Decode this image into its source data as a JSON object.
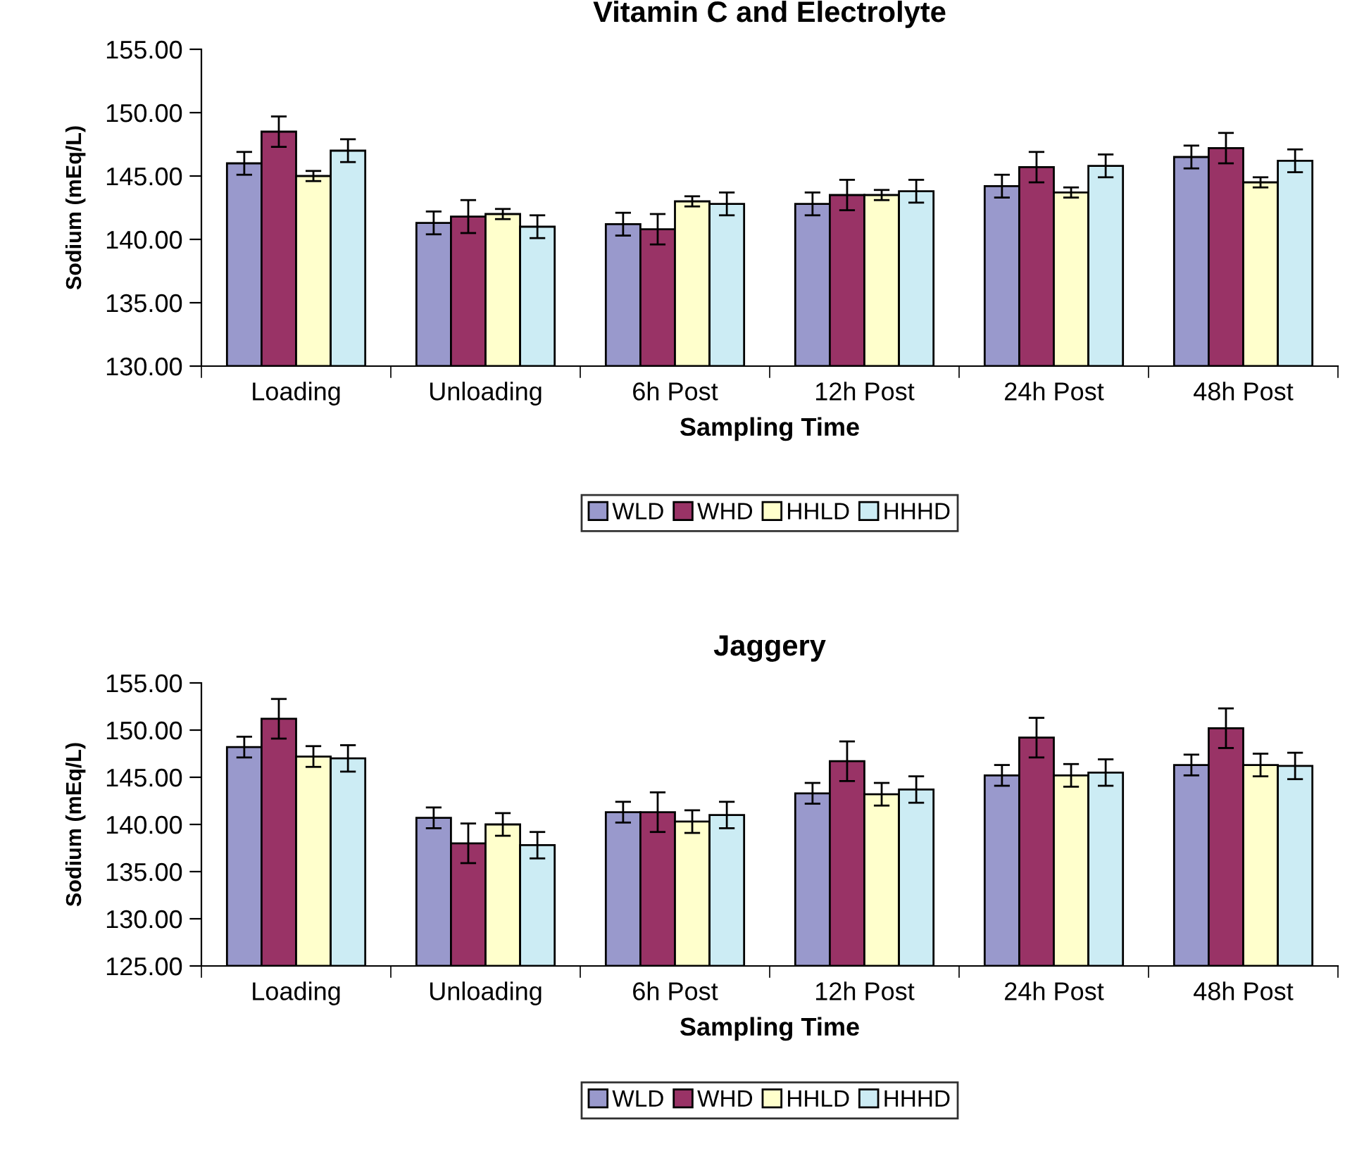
{
  "chart_data": [
    {
      "type": "bar",
      "title": "Vitamin C and Electrolyte",
      "xlabel": "Sampling Time",
      "ylabel": "Sodium (mEq/L)",
      "categories": [
        "Loading",
        "Unloading",
        "6h Post",
        "12h Post",
        "24h Post",
        "48h Post"
      ],
      "ylim": [
        130,
        155
      ],
      "yticks": [
        {
          "value": 130,
          "label": "130.00"
        },
        {
          "value": 135,
          "label": "135.00"
        },
        {
          "value": 140,
          "label": "140.00"
        },
        {
          "value": 145,
          "label": "145.00"
        },
        {
          "value": 150,
          "label": "150.00"
        },
        {
          "value": 155,
          "label": "155.00"
        }
      ],
      "grid": false,
      "legend": "bottom",
      "series": [
        {
          "name": "WLD",
          "color": "#9999cc",
          "values": [
            146.0,
            141.3,
            141.2,
            142.8,
            144.2,
            146.5
          ],
          "errors": [
            0.9,
            0.9,
            0.9,
            0.9,
            0.9,
            0.9
          ]
        },
        {
          "name": "WHD",
          "color": "#993366",
          "values": [
            148.5,
            141.8,
            140.8,
            143.5,
            145.7,
            147.2
          ],
          "errors": [
            1.2,
            1.3,
            1.2,
            1.2,
            1.2,
            1.2
          ]
        },
        {
          "name": "HHLD",
          "color": "#ffffcc",
          "values": [
            145.0,
            142.0,
            143.0,
            143.5,
            143.7,
            144.5
          ],
          "errors": [
            0.4,
            0.4,
            0.4,
            0.4,
            0.4,
            0.4
          ]
        },
        {
          "name": "HHHD",
          "color": "#ccecf4",
          "values": [
            147.0,
            141.0,
            142.8,
            143.8,
            145.8,
            146.2
          ],
          "errors": [
            0.9,
            0.9,
            0.9,
            0.9,
            0.9,
            0.9
          ]
        }
      ]
    },
    {
      "type": "bar",
      "title": "Jaggery",
      "xlabel": "Sampling Time",
      "ylabel": "Sodium (mEq/L)",
      "categories": [
        "Loading",
        "Unloading",
        "6h Post",
        "12h Post",
        "24h Post",
        "48h Post"
      ],
      "ylim": [
        125,
        155
      ],
      "yticks": [
        {
          "value": 125,
          "label": "125.00"
        },
        {
          "value": 130,
          "label": "130.00"
        },
        {
          "value": 135,
          "label": "135.00"
        },
        {
          "value": 140,
          "label": "140.00"
        },
        {
          "value": 145,
          "label": "145.00"
        },
        {
          "value": 150,
          "label": "150.00"
        },
        {
          "value": 155,
          "label": "155.00"
        }
      ],
      "grid": false,
      "legend": "bottom",
      "series": [
        {
          "name": "WLD",
          "color": "#9999cc",
          "values": [
            148.2,
            140.7,
            141.3,
            143.3,
            145.2,
            146.3
          ],
          "errors": [
            1.1,
            1.1,
            1.1,
            1.1,
            1.1,
            1.1
          ]
        },
        {
          "name": "WHD",
          "color": "#993366",
          "values": [
            151.2,
            138.0,
            141.3,
            146.7,
            149.2,
            150.2
          ],
          "errors": [
            2.1,
            2.1,
            2.1,
            2.1,
            2.1,
            2.1
          ]
        },
        {
          "name": "HHLD",
          "color": "#ffffcc",
          "values": [
            147.2,
            140.0,
            140.3,
            143.2,
            145.2,
            146.3
          ],
          "errors": [
            1.1,
            1.2,
            1.2,
            1.2,
            1.2,
            1.2
          ]
        },
        {
          "name": "HHHD",
          "color": "#ccecf4",
          "values": [
            147.0,
            137.8,
            141.0,
            143.7,
            145.5,
            146.2
          ],
          "errors": [
            1.4,
            1.4,
            1.4,
            1.4,
            1.4,
            1.4
          ]
        }
      ]
    }
  ]
}
